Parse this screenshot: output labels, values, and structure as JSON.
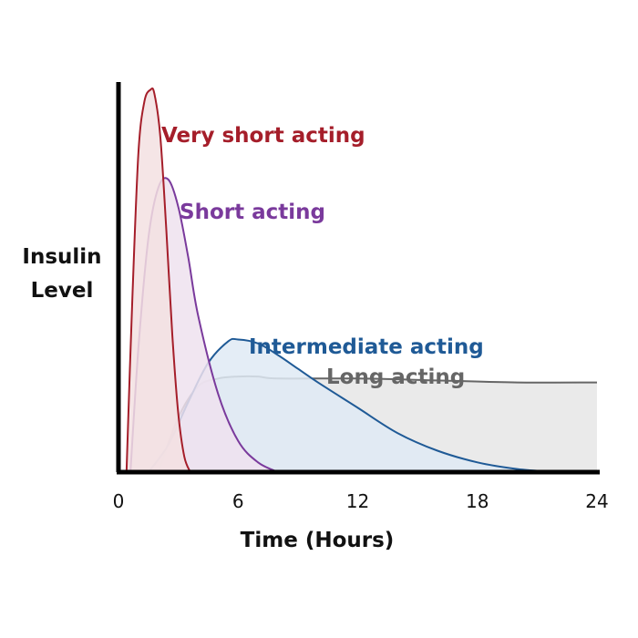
{
  "chart_data": {
    "type": "area",
    "xlabel": "Time (Hours)",
    "ylabel_lines": [
      "Insulin",
      "Level"
    ],
    "xlim": [
      0,
      24
    ],
    "ylim": [
      0,
      1
    ],
    "x_ticks": [
      "0",
      "6",
      "12",
      "18",
      "24"
    ],
    "x_tick_values": [
      0,
      6,
      12,
      18,
      24
    ],
    "grid": false,
    "series": [
      {
        "name": "Long acting",
        "color": "#666666",
        "fill": "#e6e6e6",
        "x": [
          2,
          3,
          4,
          5,
          6,
          7,
          8,
          12,
          16,
          20,
          24
        ],
        "y": [
          0,
          0.14,
          0.22,
          0.24,
          0.245,
          0.245,
          0.24,
          0.24,
          0.235,
          0.23,
          0.23
        ]
      },
      {
        "name": "Intermediate acting",
        "color": "#1f5a96",
        "fill": "#dfeaf4",
        "x": [
          1.5,
          2.5,
          3.5,
          4.5,
          5.5,
          6.0,
          7,
          8,
          9,
          10,
          12,
          14,
          16,
          18,
          20,
          22
        ],
        "y": [
          0,
          0.07,
          0.18,
          0.28,
          0.335,
          0.34,
          0.33,
          0.3,
          0.265,
          0.23,
          0.165,
          0.1,
          0.055,
          0.025,
          0.008,
          0
        ]
      },
      {
        "name": "Short acting",
        "color": "#7a3a9c",
        "fill": "#efe2ee",
        "x": [
          0.6,
          1.0,
          1.5,
          2.0,
          2.5,
          3.0,
          3.5,
          4.0,
          5.0,
          6.0,
          7.0,
          8.0
        ],
        "y": [
          0,
          0.32,
          0.6,
          0.73,
          0.75,
          0.68,
          0.55,
          0.4,
          0.2,
          0.08,
          0.025,
          0
        ]
      },
      {
        "name": "Very short acting",
        "color": "#a51e2a",
        "fill": "#f3e0e2",
        "x": [
          0.4,
          0.7,
          1.0,
          1.3,
          1.6,
          1.8,
          2.1,
          2.4,
          2.7,
          3.0,
          3.3,
          3.6
        ],
        "y": [
          0,
          0.45,
          0.82,
          0.95,
          0.98,
          0.97,
          0.86,
          0.62,
          0.35,
          0.15,
          0.04,
          0
        ]
      }
    ]
  }
}
